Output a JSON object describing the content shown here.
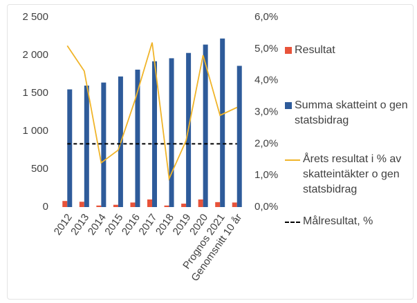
{
  "chart_data": {
    "type": "bar",
    "categories": [
      "2012",
      "2013",
      "2014",
      "2015",
      "2016",
      "2017",
      "2018",
      "2019",
      "2020",
      "Prognos 2021",
      "Genomsnitt 10 år"
    ],
    "series": [
      {
        "name": "Resultat",
        "type": "bar",
        "color": "#e8533a",
        "values": [
          80,
          70,
          20,
          30,
          60,
          100,
          20,
          45,
          100,
          65,
          60
        ]
      },
      {
        "name": "Summa skatteint o gen statsbidrag",
        "type": "bar",
        "color": "#2e5b9a",
        "values": [
          1550,
          1600,
          1640,
          1720,
          1810,
          1920,
          1960,
          2030,
          2140,
          2220,
          1860
        ]
      },
      {
        "name": "Årets resultat i % av skatteintäkter o gen statsbidrag",
        "type": "line",
        "axis": "y2",
        "color": "#f0b429",
        "values": [
          5.1,
          4.3,
          1.4,
          1.8,
          3.4,
          5.2,
          0.9,
          2.1,
          4.8,
          2.9,
          3.15
        ]
      },
      {
        "name": "Målresultat, %",
        "type": "line",
        "axis": "y2",
        "dash": true,
        "color": "#000000",
        "values": [
          2.0,
          2.0,
          2.0,
          2.0,
          2.0,
          2.0,
          2.0,
          2.0,
          2.0,
          2.0,
          2.0
        ]
      }
    ],
    "ylim": [
      0,
      2500
    ],
    "yticks": [
      0,
      500,
      {
        "value": 1000,
        "label": "1 000"
      },
      {
        "value": 1500,
        "label": "1 500"
      },
      {
        "value": 2000,
        "label": "2 000"
      },
      {
        "value": 2500,
        "label": "2 500"
      }
    ],
    "y2lim": [
      0,
      6
    ],
    "y2ticks": [
      {
        "value": 0,
        "label": "0,0%"
      },
      {
        "value": 1,
        "label": "1,0%"
      },
      {
        "value": 2,
        "label": "2,0%"
      },
      {
        "value": 3,
        "label": "3,0%"
      },
      {
        "value": 4,
        "label": "4,0%"
      },
      {
        "value": 5,
        "label": "5,0%"
      },
      {
        "value": 6,
        "label": "6,0%"
      }
    ],
    "legend": "right"
  }
}
